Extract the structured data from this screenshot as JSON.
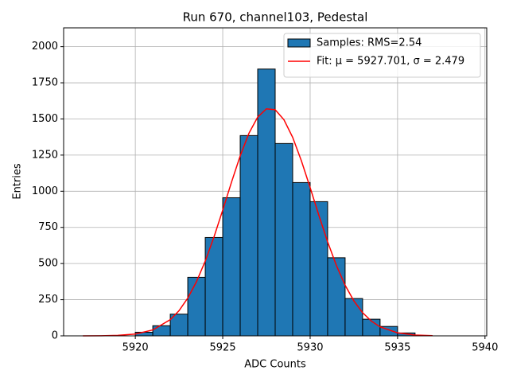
{
  "chart_data": {
    "type": "histogram",
    "title": "Run 670, channel103, Pedestal",
    "xlabel": "ADC Counts",
    "ylabel": "Entries",
    "bins": [
      5920,
      5921,
      5922,
      5923,
      5924,
      5925,
      5926,
      5927,
      5928,
      5929,
      5930,
      5931,
      5932,
      5933,
      5934,
      5935,
      5936
    ],
    "series": [
      {
        "name": "Samples: RMS=2.54",
        "type": "histogram",
        "color": "#1f77b4",
        "edgecolor": "#000000",
        "values": [
          25,
          70,
          150,
          405,
          680,
          955,
          1385,
          1845,
          1330,
          1060,
          928,
          540,
          258,
          115,
          65,
          20
        ]
      },
      {
        "name": "Fit: μ = 5927.701, σ = 2.479",
        "type": "line",
        "color": "#ff0000",
        "x": [
          5917,
          5918,
          5919,
          5920,
          5921,
          5922,
          5922.5,
          5923,
          5923.5,
          5924,
          5924.5,
          5925,
          5925.5,
          5926,
          5926.5,
          5927,
          5927.5,
          5928,
          5928.5,
          5929,
          5929.5,
          5930,
          5930.5,
          5931,
          5931.5,
          5932,
          5932.5,
          5933,
          5933.5,
          5934,
          5935,
          5936,
          5937
        ],
        "values": [
          0.14,
          0.74,
          3.3,
          12.6,
          40.8,
          112,
          174,
          261,
          375,
          517,
          684,
          870,
          1062,
          1245,
          1401,
          1513,
          1570,
          1564,
          1495,
          1373,
          1210,
          1025,
          833,
          650,
          487,
          350,
          242,
          160,
          102,
          62,
          20.6,
          5.8,
          1.4
        ]
      }
    ],
    "xlim": [
      5915.9,
      5940.1
    ],
    "xticks": [
      5920,
      5925,
      5930,
      5935,
      5940
    ],
    "ylim": [
      0,
      2130
    ],
    "yticks": [
      0,
      250,
      500,
      750,
      1000,
      1250,
      1500,
      1750,
      2000
    ],
    "grid": true,
    "legend": "upper right"
  }
}
